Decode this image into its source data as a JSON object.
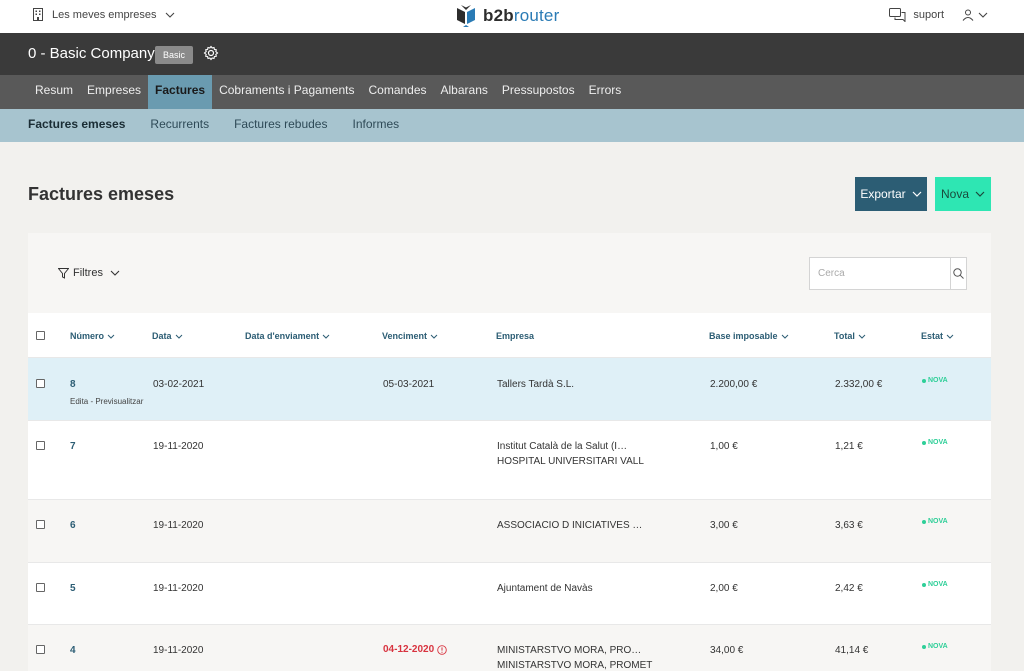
{
  "topbar": {
    "company_switcher": "Les meves empreses",
    "brand_b2b": "b2b",
    "brand_router": "router",
    "support": "suport"
  },
  "company": {
    "name": "0 - Basic Company",
    "plan": "Basic"
  },
  "main_nav": [
    {
      "label": "Resum",
      "active": false
    },
    {
      "label": "Empreses",
      "active": false
    },
    {
      "label": "Factures",
      "active": true
    },
    {
      "label": "Cobraments i Pagaments",
      "active": false
    },
    {
      "label": "Comandes",
      "active": false
    },
    {
      "label": "Albarans",
      "active": false
    },
    {
      "label": "Pressupostos",
      "active": false
    },
    {
      "label": "Errors",
      "active": false
    }
  ],
  "sub_nav": [
    {
      "label": "Factures emeses",
      "active": true
    },
    {
      "label": "Recurrents",
      "active": false
    },
    {
      "label": "Factures rebudes",
      "active": false
    },
    {
      "label": "Informes",
      "active": false
    }
  ],
  "page": {
    "title": "Factures emeses",
    "export_label": "Exportar",
    "new_label": "Nova",
    "filters_label": "Filtres",
    "search_placeholder": "Cerca"
  },
  "table": {
    "headers": {
      "number": "Número",
      "date": "Data",
      "sent_date": "Data d'enviament",
      "due": "Venciment",
      "company": "Empresa",
      "base": "Base imposable",
      "total": "Total",
      "status": "Estat"
    },
    "row_actions": {
      "edit": "Edita",
      "sep": " - ",
      "preview": "Previsualitzar"
    },
    "rows": [
      {
        "number": "8",
        "date": "03-02-2021",
        "sent_date": "",
        "due": "05-03-2021",
        "due_overdue": false,
        "company": "Tallers Tardà S.L.",
        "company_2": "",
        "base": "2.200,00 €",
        "total": "2.332,00 €",
        "status": "NOVA"
      },
      {
        "number": "7",
        "date": "19-11-2020",
        "sent_date": "",
        "due": "",
        "due_overdue": false,
        "company": "Institut Català de la Salut (I…",
        "company_2": "HOSPITAL UNIVERSITARI VALL",
        "base": "1,00 €",
        "total": "1,21 €",
        "status": "NOVA"
      },
      {
        "number": "6",
        "date": "19-11-2020",
        "sent_date": "",
        "due": "",
        "due_overdue": false,
        "company": "ASSOCIACIO D INICIATIVES …",
        "company_2": "",
        "base": "3,00 €",
        "total": "3,63 €",
        "status": "NOVA"
      },
      {
        "number": "5",
        "date": "19-11-2020",
        "sent_date": "",
        "due": "",
        "due_overdue": false,
        "company": "Ajuntament de Navàs",
        "company_2": "",
        "base": "2,00 €",
        "total": "2,42 €",
        "status": "NOVA"
      },
      {
        "number": "4",
        "date": "19-11-2020",
        "sent_date": "",
        "due": "04-12-2020",
        "due_overdue": true,
        "company": "MINISTARSTVO MORA, PRO…",
        "company_2": "MINISTARSTVO MORA, PROMET",
        "base": "34,00 €",
        "total": "41,14 €",
        "status": "NOVA"
      }
    ]
  },
  "colors": {
    "accent": "#2c5d74",
    "new_button": "#2ee6b3",
    "status_new": "#2ecf98",
    "overdue": "#d8333f",
    "highlight_row": "#dff0f7"
  }
}
